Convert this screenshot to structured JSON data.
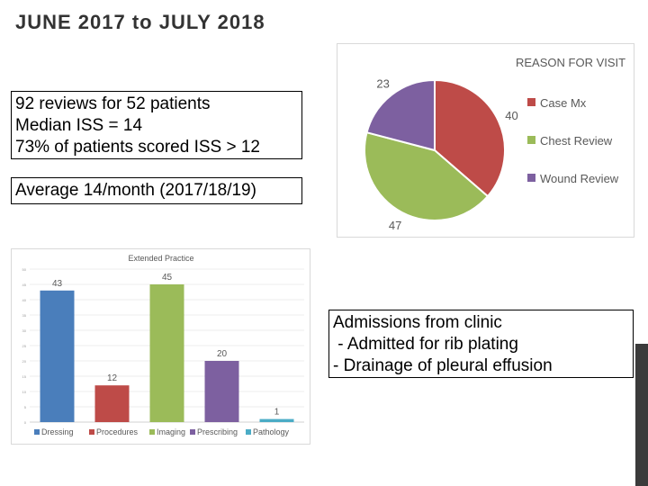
{
  "slide": {
    "title": "JUNE 2017 to JULY 2018",
    "stats_lines": [
      "92 reviews for 52 patients",
      "Median ISS = 14",
      "73% of patients scored ISS > 12"
    ],
    "average_line": "Average 14/month (2017/18/19)",
    "admissions_lines": [
      "Admissions from clinic",
      " - Admitted for rib plating",
      "- Drainage of pleural effusion"
    ]
  },
  "colors": {
    "blue": "#4a7ebb",
    "red": "#be4b48",
    "green": "#9bbb59",
    "purple": "#7d60a0",
    "teal": "#4bacc6"
  },
  "chart_data": [
    {
      "type": "pie",
      "title": "REASON FOR VISIT",
      "categories": [
        "Case Mx",
        "Chest Review",
        "Wound Review"
      ],
      "values": [
        40,
        47,
        23
      ],
      "colors": [
        "#be4b48",
        "#9bbb59",
        "#7d60a0"
      ],
      "legend": "right"
    },
    {
      "type": "bar",
      "title": "Extended Practice",
      "categories": [
        "Dressing",
        "Procedures",
        "Imaging",
        "Prescribing",
        "Pathology"
      ],
      "values": [
        43,
        12,
        45,
        20,
        1
      ],
      "colors": [
        "#4a7ebb",
        "#be4b48",
        "#9bbb59",
        "#7d60a0",
        "#4bacc6"
      ],
      "ylim": [
        0,
        50
      ],
      "legend": "bottom"
    }
  ]
}
